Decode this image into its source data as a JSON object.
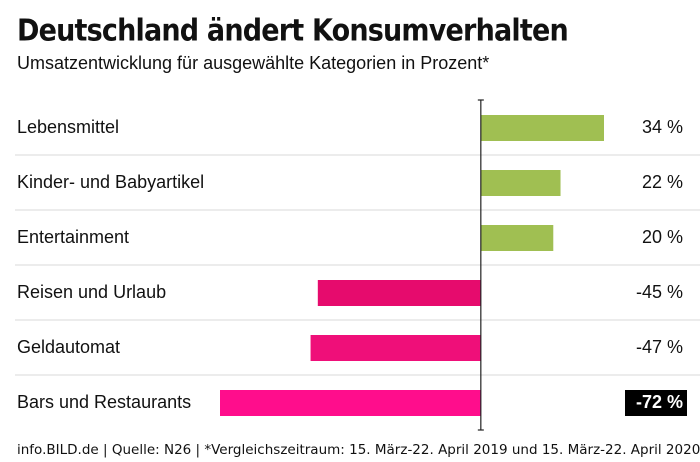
{
  "chart_data": {
    "type": "hbar",
    "title": "Deutschland ändert Konsumverhalten",
    "subtitle": "Umsatzentwicklung für ausgewählte Kategorien in Prozent*",
    "categories": [
      "Lebensmittel",
      "Kinder- und Babyartikel",
      "Entertainment",
      "Reisen und Urlaub",
      "Geldautomat",
      "Bars und Restaurants"
    ],
    "values": [
      34,
      22,
      20,
      -45,
      -47,
      -72
    ],
    "value_labels": [
      "34 %",
      "22 %",
      "20 %",
      "-45 %",
      "-47 %",
      "-72 %"
    ],
    "colors": [
      "#a0bf52",
      "#a0bf52",
      "#a0bf52",
      "#e60b6d",
      "#ef0f79",
      "#ff0d8c"
    ],
    "value_label_highlight": [
      false,
      false,
      false,
      false,
      false,
      true
    ],
    "xlim": [
      -72,
      34
    ],
    "footnote": "info.BILD.de | Quelle: N26 | *Vergleichszeitraum: 15. März-22. April 2019 und 15. März-22. April 2020"
  }
}
